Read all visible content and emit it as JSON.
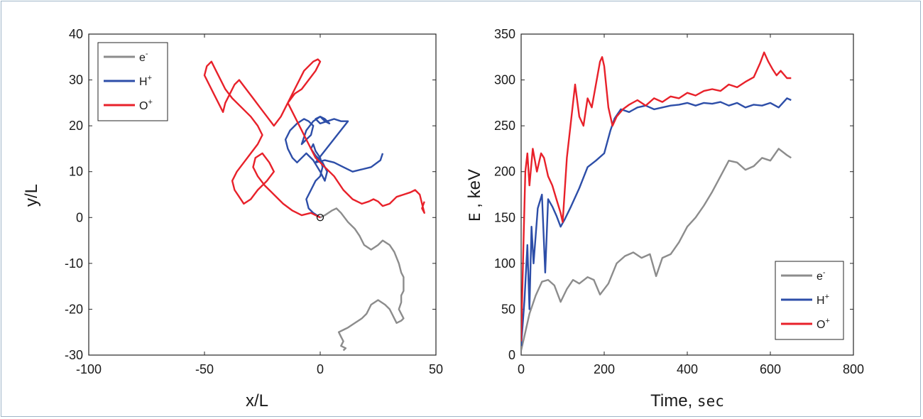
{
  "chart_data": [
    {
      "type": "line",
      "xlabel": "x/L",
      "ylabel": "y/L",
      "xlim": [
        -100,
        50
      ],
      "ylim": [
        -30,
        40
      ],
      "xticks": [
        "-100",
        "-50",
        "0",
        "50"
      ],
      "yticks": [
        "-30",
        "-20",
        "-10",
        "0",
        "10",
        "20",
        "30",
        "40"
      ],
      "legend": {
        "position": "top-left",
        "entries": [
          {
            "base": "e",
            "sup": "-",
            "color": "#8c8c8c"
          },
          {
            "base": "H",
            "sup": "+",
            "color": "#2d4ea8"
          },
          {
            "base": "O",
            "sup": "+",
            "color": "#e8212a"
          }
        ]
      },
      "start_marker": [
        0,
        0
      ],
      "series": [
        {
          "name": "e-",
          "color": "#8c8c8c",
          "x": [
            0,
            2,
            5,
            7,
            9,
            12,
            15,
            17,
            19,
            22,
            25,
            27,
            30,
            32,
            34,
            35,
            36,
            36,
            35,
            35,
            34,
            35,
            36,
            35,
            33,
            32,
            31,
            30,
            28,
            25,
            22,
            20,
            18,
            15,
            12,
            10,
            8,
            9,
            10,
            9,
            11,
            10
          ],
          "y": [
            0,
            0.5,
            1.5,
            2.0,
            1.0,
            -1.0,
            -2.5,
            -4.0,
            -6.0,
            -7.0,
            -6.0,
            -5.0,
            -6.0,
            -7.5,
            -10.0,
            -12.0,
            -13.0,
            -16.0,
            -17.0,
            -18.5,
            -20.0,
            -21.0,
            -22.0,
            -22.5,
            -23.0,
            -22.0,
            -21.0,
            -20.0,
            -19.0,
            -18.0,
            -19.0,
            -21.0,
            -22.0,
            -23.0,
            -24.0,
            -24.5,
            -25.0,
            -26.0,
            -27.0,
            -28.0,
            -28.5,
            -29.0
          ]
        },
        {
          "name": "H+",
          "color": "#2d4ea8",
          "x": [
            0,
            -3,
            -5,
            -6,
            -4,
            -2,
            0,
            1,
            0,
            -2,
            -3,
            -4,
            -2,
            1,
            3,
            2,
            0,
            -3,
            -6,
            -8,
            -10,
            -12,
            -14,
            -15,
            -13,
            -10,
            -7,
            -5,
            -3,
            -4,
            -6,
            -8,
            -6,
            -3,
            0,
            2,
            4,
            2,
            0,
            -2,
            0,
            3,
            6,
            9,
            12,
            -2,
            2,
            6,
            10,
            14,
            18,
            22,
            26,
            27
          ],
          "y": [
            0,
            1.0,
            2.0,
            4.0,
            6.0,
            8.0,
            9.0,
            11.0,
            13.0,
            14.5,
            16.0,
            15.0,
            13.5,
            12.0,
            10.0,
            8.0,
            10.0,
            12.5,
            14.0,
            13.0,
            12.0,
            13.0,
            15.0,
            17.0,
            19.0,
            20.5,
            21.5,
            21.0,
            20.0,
            18.0,
            17.0,
            16.0,
            19.0,
            21.0,
            22.0,
            21.5,
            20.5,
            21.0,
            22.0,
            21.5,
            20.5,
            21.0,
            21.5,
            21.0,
            21.0,
            12.0,
            12.5,
            12.0,
            11.0,
            10.0,
            10.5,
            11.0,
            12.5,
            14.0
          ]
        },
        {
          "name": "O+",
          "color": "#e8212a",
          "x": [
            0,
            -4,
            -8,
            -12,
            -16,
            -20,
            -24,
            -27,
            -29,
            -28,
            -25,
            -22,
            -20,
            -23,
            -27,
            -30,
            -33,
            -35,
            -37,
            -38,
            -36,
            -33,
            -30,
            -27,
            -25,
            -27,
            -30,
            -34,
            -38,
            -41,
            -43,
            -45,
            -47,
            -49,
            -50,
            -48,
            -46,
            -44,
            -42,
            -41,
            -39,
            -37,
            -35,
            -32,
            -29,
            -26,
            -23,
            -20,
            -17,
            -15,
            -13,
            -11,
            -9,
            -7,
            -5,
            -3,
            -1,
            0,
            -2,
            -5,
            -8,
            -11,
            -14,
            -12,
            -10,
            -8,
            -6,
            -4,
            -2,
            2,
            6,
            10,
            14,
            18,
            21,
            23,
            25,
            27,
            30,
            33,
            36,
            39,
            41,
            43,
            44,
            45,
            44,
            45
          ],
          "y": [
            0,
            1.0,
            0.5,
            1.5,
            3.0,
            5.0,
            7.0,
            9.0,
            11.0,
            13.0,
            14.0,
            12.0,
            10.0,
            8.0,
            6.0,
            4.0,
            3.0,
            4.5,
            6.0,
            8.0,
            10.0,
            12.0,
            14.0,
            16.0,
            18.0,
            20.0,
            22.0,
            24.0,
            26.0,
            28.0,
            30.0,
            32.0,
            34.0,
            33.0,
            31.0,
            29.0,
            27.0,
            25.0,
            23.0,
            25.0,
            27.0,
            29.0,
            30.0,
            28.0,
            26.0,
            24.0,
            22.0,
            20.0,
            22.0,
            24.0,
            26.0,
            28.0,
            30.0,
            32.0,
            33.0,
            34.0,
            34.5,
            34.0,
            32.0,
            30.0,
            28.0,
            27.0,
            25.0,
            23.0,
            21.0,
            19.0,
            17.0,
            15.0,
            13.0,
            11.0,
            9.0,
            6.0,
            4.0,
            3.0,
            3.5,
            4.0,
            3.5,
            2.5,
            3.0,
            4.5,
            5.0,
            5.5,
            6.0,
            5.0,
            3.0,
            1.0,
            2.0,
            3.5
          ]
        }
      ]
    },
    {
      "type": "line",
      "xlabel": "Time, sec",
      "ylabel": "E , keV",
      "xlim": [
        0,
        800
      ],
      "ylim": [
        0,
        350
      ],
      "xticks": [
        "0",
        "200",
        "400",
        "600",
        "800"
      ],
      "yticks": [
        "0",
        "50",
        "100",
        "150",
        "200",
        "250",
        "300",
        "350"
      ],
      "legend": {
        "position": "bottom-right",
        "entries": [
          {
            "base": "e",
            "sup": "-",
            "color": "#8c8c8c"
          },
          {
            "base": "H",
            "sup": "+",
            "color": "#2d4ea8"
          },
          {
            "base": "O",
            "sup": "+",
            "color": "#e8212a"
          }
        ]
      },
      "series": [
        {
          "name": "e-",
          "color": "#8c8c8c",
          "x": [
            0,
            10,
            20,
            35,
            50,
            65,
            80,
            95,
            110,
            125,
            140,
            160,
            175,
            190,
            210,
            230,
            250,
            270,
            290,
            310,
            325,
            340,
            360,
            380,
            400,
            420,
            440,
            460,
            480,
            500,
            520,
            540,
            560,
            580,
            600,
            620,
            640,
            650
          ],
          "y": [
            5,
            25,
            45,
            65,
            80,
            82,
            76,
            58,
            72,
            82,
            78,
            85,
            82,
            66,
            78,
            100,
            108,
            112,
            106,
            110,
            86,
            106,
            110,
            123,
            140,
            150,
            163,
            178,
            195,
            212,
            210,
            202,
            206,
            215,
            212,
            225,
            218,
            215
          ]
        },
        {
          "name": "H+",
          "color": "#2d4ea8",
          "x": [
            0,
            8,
            15,
            20,
            25,
            30,
            40,
            50,
            58,
            65,
            75,
            85,
            95,
            105,
            120,
            140,
            160,
            180,
            200,
            215,
            225,
            240,
            260,
            280,
            300,
            320,
            340,
            360,
            380,
            400,
            420,
            440,
            460,
            480,
            500,
            520,
            540,
            560,
            580,
            600,
            620,
            640,
            650
          ],
          "y": [
            10,
            60,
            120,
            50,
            140,
            100,
            160,
            175,
            90,
            170,
            162,
            152,
            140,
            148,
            162,
            182,
            205,
            212,
            220,
            245,
            258,
            268,
            265,
            270,
            272,
            268,
            270,
            272,
            273,
            275,
            272,
            275,
            274,
            276,
            272,
            275,
            270,
            273,
            272,
            275,
            270,
            280,
            278
          ]
        },
        {
          "name": "O+",
          "color": "#e8212a",
          "x": [
            0,
            5,
            10,
            15,
            20,
            28,
            38,
            48,
            55,
            65,
            75,
            85,
            95,
            100,
            110,
            120,
            130,
            140,
            150,
            160,
            170,
            180,
            190,
            195,
            200,
            210,
            220,
            230,
            245,
            260,
            280,
            300,
            320,
            340,
            360,
            380,
            400,
            420,
            440,
            460,
            480,
            500,
            520,
            540,
            560,
            575,
            585,
            595,
            605,
            615,
            625,
            640,
            650
          ],
          "y": [
            15,
            110,
            200,
            220,
            185,
            225,
            200,
            220,
            215,
            195,
            185,
            170,
            155,
            145,
            215,
            255,
            295,
            260,
            250,
            280,
            270,
            295,
            320,
            325,
            315,
            270,
            250,
            260,
            268,
            273,
            278,
            272,
            280,
            276,
            282,
            280,
            286,
            283,
            288,
            290,
            288,
            295,
            292,
            298,
            303,
            318,
            330,
            320,
            312,
            305,
            310,
            302,
            302
          ]
        }
      ]
    }
  ]
}
